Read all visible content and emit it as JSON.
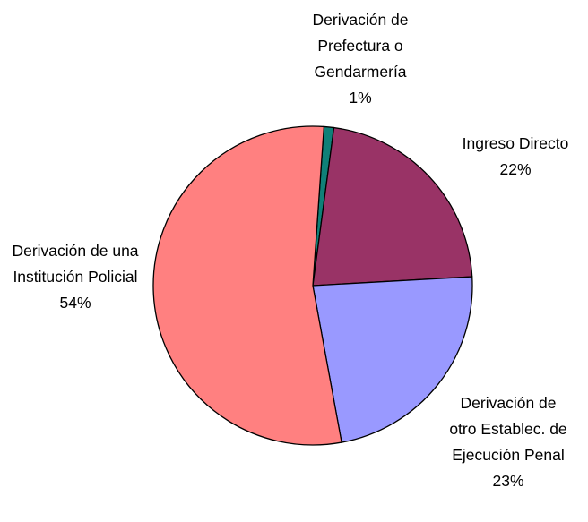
{
  "chart_data": {
    "type": "pie",
    "categories": [
      "Derivación de Prefectura o Gendarmería",
      "Ingreso Directo",
      "Derivación de otro Establec. de Ejecución Penal",
      "Derivación de una Institución Policial"
    ],
    "values": [
      1,
      22,
      23,
      54
    ],
    "value_labels": [
      "1%",
      "22%",
      "23%",
      "54%"
    ],
    "colors": [
      "#0f8078",
      "#993366",
      "#9999ff",
      "#ff8080"
    ]
  }
}
